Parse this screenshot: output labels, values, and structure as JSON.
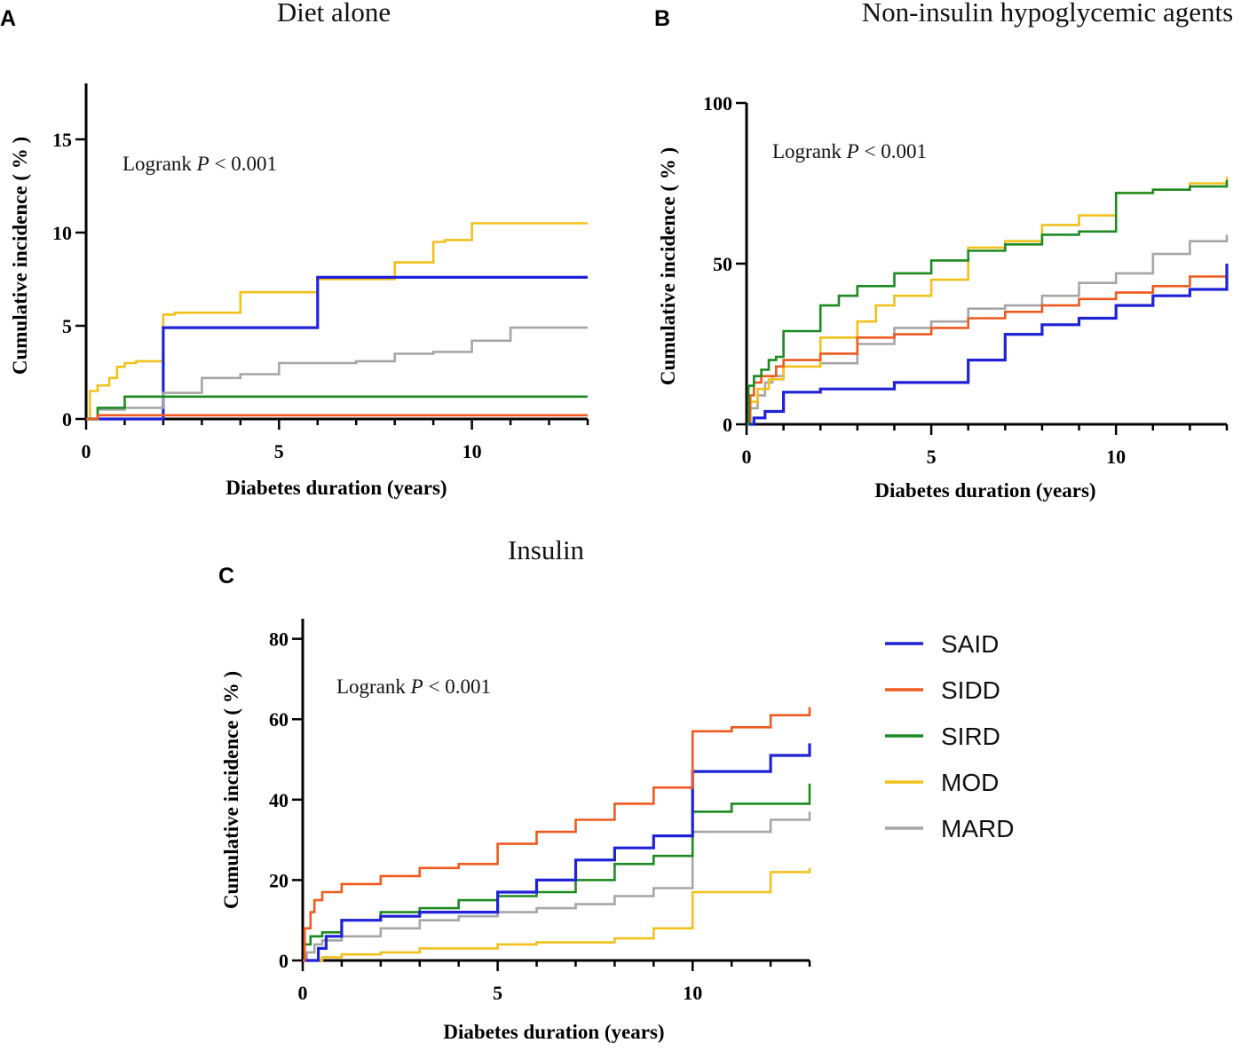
{
  "legend": [
    {
      "name": "SAID",
      "color": "#1f22d6"
    },
    {
      "name": "SIDD",
      "color": "#f05a1e"
    },
    {
      "name": "SIRD",
      "color": "#1d8a22"
    },
    {
      "name": "MOD",
      "color": "#f2c11b"
    },
    {
      "name": "MARD",
      "color": "#a6a6a6"
    }
  ],
  "chart_data": [
    {
      "letter": "A",
      "title": "Diet alone",
      "type": "line",
      "step": true,
      "annotation": {
        "prefix": "Logrank ",
        "italic": "P",
        "suffix": " < 0.001"
      },
      "xlabel": "Diabetes duration (years)",
      "ylabel": "Cumulative incidence ( % )",
      "xlim": [
        0,
        13
      ],
      "ylim": [
        0,
        18
      ],
      "xticks": [
        0,
        5,
        10
      ],
      "yticks": [
        0,
        5,
        10,
        15
      ],
      "series": [
        {
          "name": "MOD",
          "color": "#f2c11b",
          "points": [
            [
              0,
              0
            ],
            [
              0.1,
              1.5
            ],
            [
              0.3,
              1.8
            ],
            [
              0.6,
              2.2
            ],
            [
              0.8,
              2.8
            ],
            [
              1,
              3
            ],
            [
              1.3,
              3.1
            ],
            [
              2,
              5.6
            ],
            [
              2.3,
              5.7
            ],
            [
              4,
              6.8
            ],
            [
              6,
              7.5
            ],
            [
              8,
              8.4
            ],
            [
              9,
              9.5
            ],
            [
              9.3,
              9.6
            ],
            [
              10,
              10.5
            ],
            [
              13,
              10.5
            ]
          ]
        },
        {
          "name": "SAID",
          "color": "#1f22d6",
          "points": [
            [
              0,
              0
            ],
            [
              2,
              0
            ],
            [
              2,
              4.9
            ],
            [
              6,
              4.9
            ],
            [
              6,
              7.6
            ],
            [
              13,
              7.6
            ]
          ]
        },
        {
          "name": "MARD",
          "color": "#a6a6a6",
          "points": [
            [
              0,
              0
            ],
            [
              0.3,
              0.5
            ],
            [
              1,
              0.6
            ],
            [
              2,
              1.4
            ],
            [
              3,
              2.2
            ],
            [
              4,
              2.4
            ],
            [
              5,
              3
            ],
            [
              6,
              3
            ],
            [
              7,
              3.1
            ],
            [
              8,
              3.5
            ],
            [
              9,
              3.6
            ],
            [
              10,
              4.2
            ],
            [
              11,
              4.9
            ],
            [
              13,
              4.9
            ]
          ]
        },
        {
          "name": "SIRD",
          "color": "#1d8a22",
          "points": [
            [
              0,
              0
            ],
            [
              0.3,
              0.6
            ],
            [
              1,
              1.2
            ],
            [
              13,
              1.2
            ]
          ]
        },
        {
          "name": "SIDD",
          "color": "#f05a1e",
          "points": [
            [
              0,
              0
            ],
            [
              0.3,
              0.2
            ],
            [
              13,
              0.2
            ]
          ]
        }
      ]
    },
    {
      "letter": "B",
      "title": "Non-insulin hypoglycemic agents",
      "type": "line",
      "step": true,
      "annotation": {
        "prefix": "Logrank ",
        "italic": "P",
        "suffix": " < 0.001"
      },
      "xlabel": "Diabetes duration (years)",
      "ylabel": "Cumulative incidence ( % )",
      "xlim": [
        0,
        13
      ],
      "ylim": [
        0,
        100
      ],
      "xticks": [
        0,
        5,
        10
      ],
      "yticks": [
        0,
        50,
        100
      ],
      "series": [
        {
          "name": "MARD",
          "color": "#a6a6a6",
          "points": [
            [
              0,
              0
            ],
            [
              0.1,
              5
            ],
            [
              0.3,
              9
            ],
            [
              0.5,
              13
            ],
            [
              0.7,
              15
            ],
            [
              1,
              18
            ],
            [
              2,
              19
            ],
            [
              3,
              25
            ],
            [
              4,
              30
            ],
            [
              5,
              32
            ],
            [
              6,
              36
            ],
            [
              7,
              37
            ],
            [
              8,
              40
            ],
            [
              9,
              44
            ],
            [
              10,
              47
            ],
            [
              11,
              53
            ],
            [
              12,
              57
            ],
            [
              13,
              59
            ]
          ]
        },
        {
          "name": "MOD",
          "color": "#f2c11b",
          "points": [
            [
              0,
              0
            ],
            [
              0.1,
              7
            ],
            [
              0.3,
              11
            ],
            [
              0.6,
              14
            ],
            [
              1,
              18
            ],
            [
              2,
              27
            ],
            [
              3,
              32
            ],
            [
              3.5,
              37
            ],
            [
              4,
              40
            ],
            [
              5,
              45
            ],
            [
              6,
              55
            ],
            [
              7,
              57
            ],
            [
              8,
              62
            ],
            [
              9,
              65
            ],
            [
              10,
              72
            ],
            [
              11,
              73
            ],
            [
              12,
              75
            ],
            [
              13,
              77
            ]
          ]
        },
        {
          "name": "SIDD",
          "color": "#f05a1e",
          "points": [
            [
              0,
              0
            ],
            [
              0.1,
              9
            ],
            [
              0.2,
              13
            ],
            [
              0.4,
              15
            ],
            [
              0.8,
              18
            ],
            [
              1,
              20
            ],
            [
              2,
              22
            ],
            [
              3,
              27
            ],
            [
              4,
              28
            ],
            [
              5,
              30
            ],
            [
              6,
              33
            ],
            [
              7,
              35
            ],
            [
              8,
              37
            ],
            [
              9,
              39
            ],
            [
              10,
              41
            ],
            [
              11,
              43
            ],
            [
              12,
              46
            ],
            [
              13,
              48
            ]
          ]
        },
        {
          "name": "SAID",
          "color": "#1f22d6",
          "points": [
            [
              0,
              0
            ],
            [
              0.2,
              2
            ],
            [
              0.5,
              4
            ],
            [
              1,
              10
            ],
            [
              2,
              11
            ],
            [
              3,
              11
            ],
            [
              4,
              13
            ],
            [
              5,
              13
            ],
            [
              6,
              20
            ],
            [
              7,
              28
            ],
            [
              8,
              31
            ],
            [
              9,
              33
            ],
            [
              10,
              37
            ],
            [
              11,
              40
            ],
            [
              12,
              42
            ],
            [
              13,
              50
            ]
          ]
        },
        {
          "name": "SIRD",
          "color": "#1d8a22",
          "points": [
            [
              0,
              0
            ],
            [
              0.05,
              12
            ],
            [
              0.2,
              15
            ],
            [
              0.4,
              17
            ],
            [
              0.6,
              20
            ],
            [
              0.8,
              21
            ],
            [
              1,
              29
            ],
            [
              2,
              37
            ],
            [
              2.5,
              40
            ],
            [
              3,
              43
            ],
            [
              4,
              47
            ],
            [
              5,
              51
            ],
            [
              6,
              54
            ],
            [
              7,
              56
            ],
            [
              8,
              59
            ],
            [
              9,
              60
            ],
            [
              10,
              72
            ],
            [
              11,
              73
            ],
            [
              12,
              74
            ],
            [
              13,
              76
            ]
          ]
        }
      ]
    },
    {
      "letter": "C",
      "title": "Insulin",
      "type": "line",
      "step": true,
      "annotation": {
        "prefix": "Logrank ",
        "italic": "P",
        "suffix": " < 0.001"
      },
      "xlabel": "Diabetes duration (years)",
      "ylabel": "Cumulative incidence ( % )",
      "xlim": [
        0,
        13
      ],
      "ylim": [
        0,
        85
      ],
      "xticks": [
        0,
        5,
        10
      ],
      "yticks": [
        0,
        20,
        40,
        60,
        80
      ],
      "series": [
        {
          "name": "MOD",
          "color": "#f2c11b",
          "points": [
            [
              0,
              0
            ],
            [
              0.5,
              0.8
            ],
            [
              1,
              1.5
            ],
            [
              2,
              2
            ],
            [
              3,
              3
            ],
            [
              5,
              4
            ],
            [
              6,
              4.5
            ],
            [
              8,
              5.5
            ],
            [
              9,
              8
            ],
            [
              10,
              17
            ],
            [
              12,
              22
            ],
            [
              13,
              23
            ]
          ]
        },
        {
          "name": "MARD",
          "color": "#a6a6a6",
          "points": [
            [
              0,
              0
            ],
            [
              0.1,
              2
            ],
            [
              0.3,
              4
            ],
            [
              0.5,
              5
            ],
            [
              1,
              6
            ],
            [
              2,
              8
            ],
            [
              3,
              10
            ],
            [
              4,
              11
            ],
            [
              5,
              12
            ],
            [
              6,
              13
            ],
            [
              7,
              14
            ],
            [
              8,
              16
            ],
            [
              9,
              18
            ],
            [
              10,
              32
            ],
            [
              11,
              32
            ],
            [
              12,
              35
            ],
            [
              13,
              37
            ]
          ]
        },
        {
          "name": "SIRD",
          "color": "#1d8a22",
          "points": [
            [
              0,
              0
            ],
            [
              0.05,
              4
            ],
            [
              0.2,
              6
            ],
            [
              0.5,
              7
            ],
            [
              1,
              10
            ],
            [
              2,
              12
            ],
            [
              3,
              13
            ],
            [
              4,
              15
            ],
            [
              5,
              16
            ],
            [
              6,
              17
            ],
            [
              7,
              20
            ],
            [
              8,
              24
            ],
            [
              9,
              26
            ],
            [
              10,
              37
            ],
            [
              11,
              39
            ],
            [
              12,
              39
            ],
            [
              13,
              44
            ]
          ]
        },
        {
          "name": "SAID",
          "color": "#1f22d6",
          "points": [
            [
              0,
              0
            ],
            [
              0.4,
              3
            ],
            [
              0.6,
              6
            ],
            [
              1,
              10
            ],
            [
              2,
              11
            ],
            [
              3,
              12
            ],
            [
              5,
              17
            ],
            [
              6,
              20
            ],
            [
              7,
              25
            ],
            [
              8,
              28
            ],
            [
              9,
              31
            ],
            [
              10,
              47
            ],
            [
              12,
              51
            ],
            [
              13,
              54
            ]
          ]
        },
        {
          "name": "SIDD",
          "color": "#f05a1e",
          "points": [
            [
              0,
              0
            ],
            [
              0.05,
              8
            ],
            [
              0.2,
              12
            ],
            [
              0.3,
              15
            ],
            [
              0.5,
              17
            ],
            [
              1,
              19
            ],
            [
              2,
              21
            ],
            [
              3,
              23
            ],
            [
              4,
              24
            ],
            [
              5,
              29
            ],
            [
              6,
              32
            ],
            [
              7,
              35
            ],
            [
              8,
              39
            ],
            [
              9,
              43
            ],
            [
              10,
              57
            ],
            [
              11,
              58
            ],
            [
              12,
              61
            ],
            [
              13,
              63
            ]
          ]
        }
      ]
    }
  ]
}
